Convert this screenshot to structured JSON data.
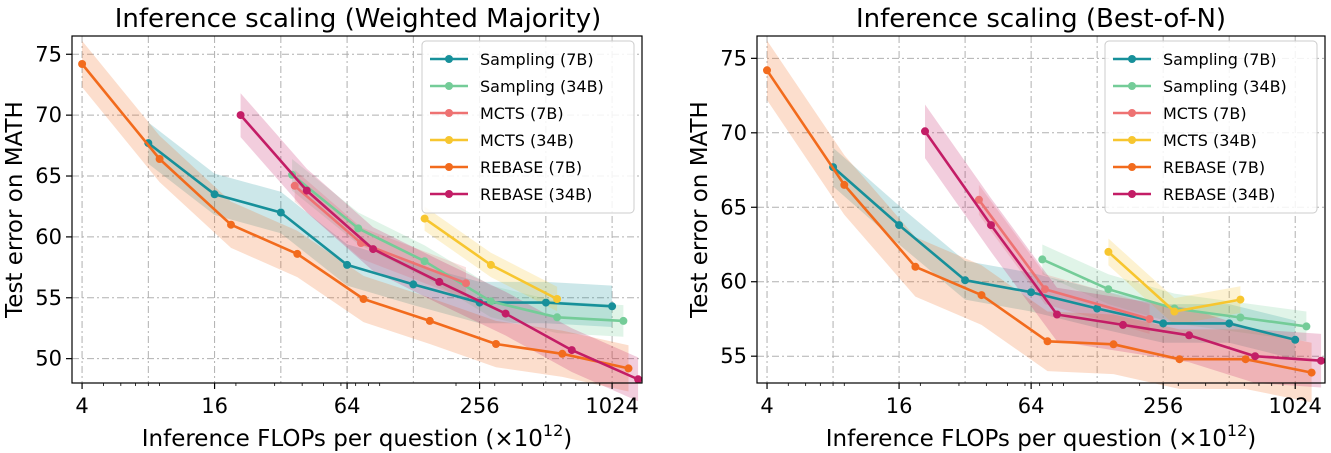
{
  "chart_data": [
    {
      "type": "line",
      "title": "Inference scaling (Weighted Majority)",
      "xlabel_prefix": "Inference FLOPs per question (×10",
      "xlabel_exp": "12",
      "xlabel_suffix": ")",
      "ylabel": "Test error on MATH",
      "xscale": "log2",
      "xlim": [
        3.6,
        1400
      ],
      "ylim": [
        48,
        76.5
      ],
      "xticks": [
        4,
        16,
        64,
        256,
        1024
      ],
      "xtick_labels": [
        "4",
        "16",
        "64",
        "256",
        "1024"
      ],
      "yticks": [
        50,
        55,
        60,
        65,
        70,
        75
      ],
      "ytick_labels": [
        "50",
        "55",
        "60",
        "65",
        "70",
        "75"
      ],
      "grid": true,
      "legend": "top-right",
      "series": [
        {
          "name": "Sampling (7B)",
          "color": "#17909a",
          "x": [
            8,
            16,
            32,
            64,
            128,
            256,
            512,
            1024
          ],
          "y": [
            67.7,
            63.5,
            62.0,
            57.7,
            56.1,
            54.6,
            54.6,
            54.3
          ],
          "spread": 1.7
        },
        {
          "name": "Sampling (34B)",
          "color": "#74cc98",
          "x": [
            36,
            72,
            144,
            288,
            576,
            1152
          ],
          "y": [
            65.1,
            60.7,
            58.0,
            54.7,
            53.4,
            53.1
          ],
          "spread": 1.3
        },
        {
          "name": "MCTS (7B)",
          "color": "#ee7272",
          "x": [
            37,
            74,
            222
          ],
          "y": [
            64.2,
            59.5,
            56.2
          ],
          "spread": 1.3
        },
        {
          "name": "MCTS (34B)",
          "color": "#f7c62f",
          "x": [
            144,
            288,
            576
          ],
          "y": [
            61.5,
            57.7,
            54.9
          ],
          "spread": 1.0
        },
        {
          "name": "REBASE (7B)",
          "color": "#f26b1d",
          "x": [
            4,
            9,
            19,
            38,
            76,
            152,
            304,
            608,
            1216
          ],
          "y": [
            74.2,
            66.4,
            61.0,
            58.6,
            54.9,
            53.1,
            51.2,
            50.4,
            49.2
          ],
          "spread": 1.9
        },
        {
          "name": "REBASE (34B)",
          "color": "#c31d66",
          "x": [
            21,
            42,
            84,
            168,
            336,
            672,
            1344
          ],
          "y": [
            70.0,
            63.8,
            59.0,
            56.3,
            53.7,
            50.7,
            48.3
          ],
          "spread": 1.8
        }
      ]
    },
    {
      "type": "line",
      "title": "Inference scaling (Best-of-N)",
      "xlabel_prefix": "Inference FLOPs per question (×10",
      "xlabel_exp": "12",
      "xlabel_suffix": ")",
      "ylabel": "Test error on MATH",
      "xscale": "log2",
      "xlim": [
        3.6,
        1400
      ],
      "ylim": [
        53.2,
        76.5
      ],
      "xticks": [
        4,
        16,
        64,
        256,
        1024
      ],
      "xtick_labels": [
        "4",
        "16",
        "64",
        "256",
        "1024"
      ],
      "yticks": [
        55,
        60,
        65,
        70,
        75
      ],
      "ytick_labels": [
        "55",
        "60",
        "65",
        "70",
        "75"
      ],
      "grid": true,
      "legend": "top-right",
      "series": [
        {
          "name": "Sampling (7B)",
          "color": "#17909a",
          "x": [
            8,
            16,
            32,
            64,
            128,
            256,
            512,
            1024
          ],
          "y": [
            67.7,
            63.8,
            60.1,
            59.3,
            58.2,
            57.2,
            57.2,
            56.1
          ],
          "spread": 1.3
        },
        {
          "name": "Sampling (34B)",
          "color": "#74cc98",
          "x": [
            72,
            144,
            288,
            576,
            1152
          ],
          "y": [
            61.5,
            59.5,
            58.2,
            57.6,
            57.0
          ],
          "spread": 1.0
        },
        {
          "name": "MCTS (7B)",
          "color": "#ee7272",
          "x": [
            37,
            74,
            222
          ],
          "y": [
            65.5,
            59.5,
            57.5
          ],
          "spread": 1.0
        },
        {
          "name": "MCTS (34B)",
          "color": "#f7c62f",
          "x": [
            144,
            288,
            576
          ],
          "y": [
            62.0,
            58.0,
            58.8
          ],
          "spread": 0.9
        },
        {
          "name": "REBASE (7B)",
          "color": "#f26b1d",
          "x": [
            4,
            9,
            19,
            38,
            76,
            152,
            304,
            608,
            1216
          ],
          "y": [
            74.2,
            66.5,
            61.0,
            59.1,
            56.0,
            55.8,
            54.8,
            54.8,
            53.9
          ],
          "spread": 2.0
        },
        {
          "name": "REBASE (34B)",
          "color": "#c31d66",
          "x": [
            21,
            42,
            84,
            168,
            336,
            672,
            1344
          ],
          "y": [
            70.1,
            63.8,
            57.8,
            57.1,
            56.4,
            55.0,
            54.7
          ],
          "spread": 1.8
        }
      ]
    }
  ]
}
